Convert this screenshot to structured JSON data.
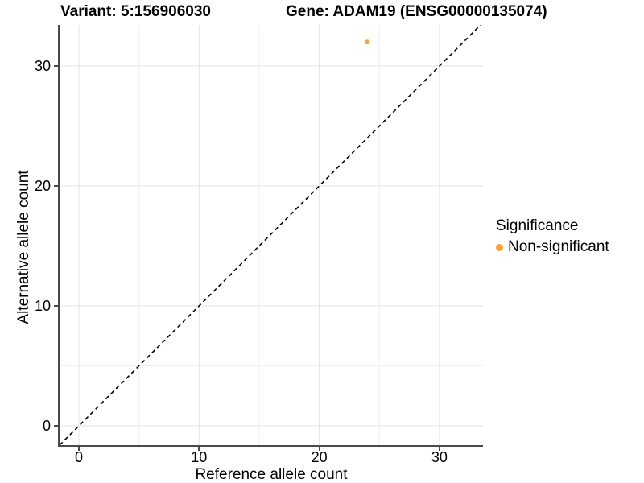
{
  "chart_data": {
    "type": "scatter",
    "titles": {
      "left": "Variant: 5:156906030",
      "right": "Gene: ADAM19 (ENSG00000135074)"
    },
    "xlabel": "Reference allele count",
    "ylabel": "Alternative allele count",
    "xlim": [
      -1.6,
      33.6
    ],
    "ylim": [
      -1.6,
      33.4
    ],
    "xticks": [
      0,
      10,
      20,
      30
    ],
    "yticks": [
      0,
      10,
      20,
      30
    ],
    "minor_xticks": [
      5,
      15,
      25
    ],
    "minor_yticks": [
      5,
      15,
      25
    ],
    "grid": "major and minor gridlines, light gray on white panel",
    "identity_line": {
      "style": "dashed",
      "from": [
        -1.6,
        -1.6
      ],
      "to": [
        33.6,
        33.6
      ],
      "color": "#000000"
    },
    "series": [
      {
        "name": "Non-significant",
        "color": "#F9A242",
        "points": [
          [
            24,
            32
          ]
        ]
      }
    ],
    "legend": {
      "title": "Significance",
      "position": "right-middle",
      "entries": [
        {
          "label": "Non-significant",
          "color": "#F9A242"
        }
      ]
    }
  },
  "colors": {
    "point": "#F9A242",
    "axis_line": "#4A4A4A",
    "tick_text": "#000000",
    "grid_major": "#E3E3E3",
    "grid_minor": "#F0F0F0",
    "dashed_line": "#000000",
    "background": "#FFFFFF"
  }
}
